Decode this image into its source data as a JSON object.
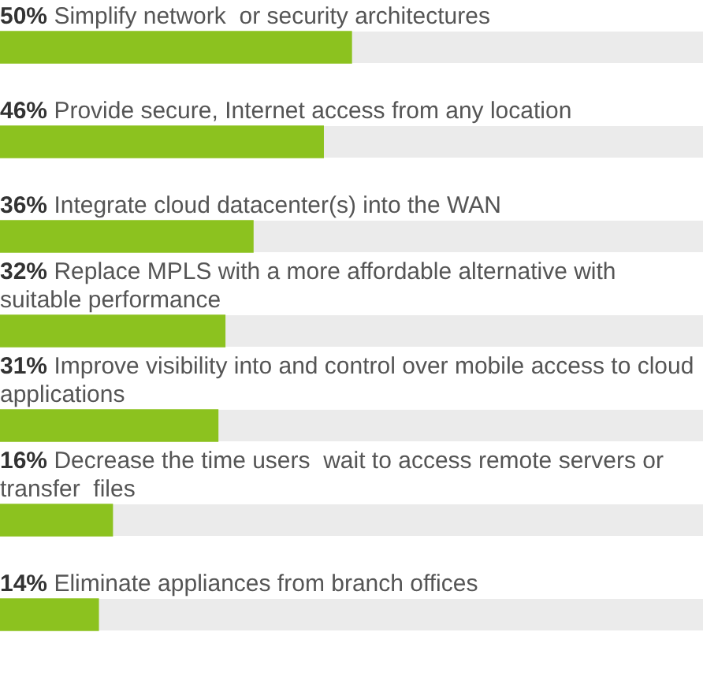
{
  "chart_data": {
    "type": "bar",
    "orientation": "horizontal",
    "categories": [
      "Simplify network  or security architectures",
      "Provide secure, Internet access from any location",
      "Integrate cloud datacenter(s) into the WAN",
      "Replace MPLS with a more affordable alternative with suitable performance",
      "Improve visibility into and control over mobile access to cloud applications",
      "Decrease the time users  wait to access remote servers or transfer  files",
      "Eliminate appliances from branch offices"
    ],
    "values": [
      50,
      46,
      36,
      32,
      31,
      16,
      14
    ],
    "value_labels": [
      "50%",
      "46%",
      "36%",
      "32%",
      "31%",
      "16%",
      "14%"
    ],
    "color": "#8cc21f",
    "xlim": [
      0,
      100
    ]
  }
}
